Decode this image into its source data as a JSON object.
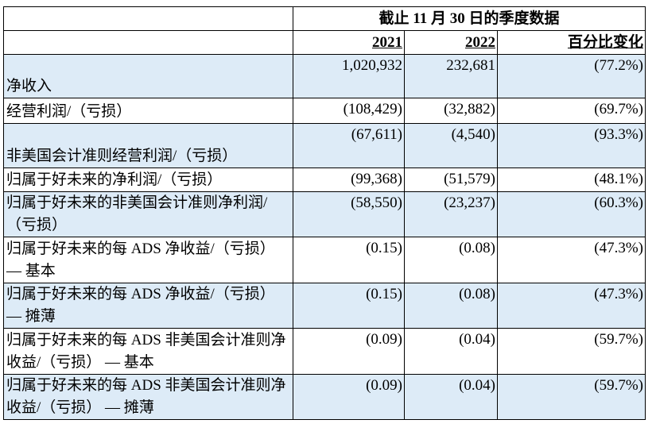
{
  "header": {
    "period": "截止 11 月 30 日的季度数据",
    "col_2021": "2021",
    "col_2022": "2022",
    "col_change": "百分比变化"
  },
  "rows": [
    {
      "label": "净收入",
      "v2021": "1,020,932",
      "v2022": "232,681",
      "change": "(77.2%)",
      "shaded": true
    },
    {
      "label": "经营利润/（亏损）",
      "v2021": "(108,429)",
      "v2022": "(32,882)",
      "change": "(69.7%)",
      "shaded": false
    },
    {
      "label": "非美国会计准则经营利润/（亏损）",
      "v2021": "(67,611)",
      "v2022": "(4,540)",
      "change": "(93.3%)",
      "shaded": true
    },
    {
      "label": "归属于好未来的净利润/（亏损）",
      "v2021": "(99,368)",
      "v2022": "(51,579)",
      "change": "(48.1%)",
      "shaded": false
    },
    {
      "label": "归属于好未来的非美国会计准则净利润/（亏损）",
      "v2021": "(58,550)",
      "v2022": "(23,237)",
      "change": "(60.3%)",
      "shaded": true
    },
    {
      "label": "归属于好未来的每 ADS 净收益/（亏损） — 基本",
      "v2021": "(0.15)",
      "v2022": "(0.08)",
      "change": "(47.3%)",
      "shaded": false
    },
    {
      "label": "归属于好未来的每 ADS 净收益/（亏损） — 摊薄",
      "v2021": "(0.15)",
      "v2022": "(0.08)",
      "change": "(47.3%)",
      "shaded": true
    },
    {
      "label": "归属于好未来的每 ADS 非美国会计准则净收益/（亏损） — 基本",
      "v2021": "(0.09)",
      "v2022": "(0.04)",
      "change": "(59.7%)",
      "shaded": false
    },
    {
      "label": "归属于好未来的每 ADS 非美国会计准则净收益/（亏损） — 摊薄",
      "v2021": "(0.09)",
      "v2022": "(0.04)",
      "change": "(59.7%)",
      "shaded": true
    }
  ]
}
